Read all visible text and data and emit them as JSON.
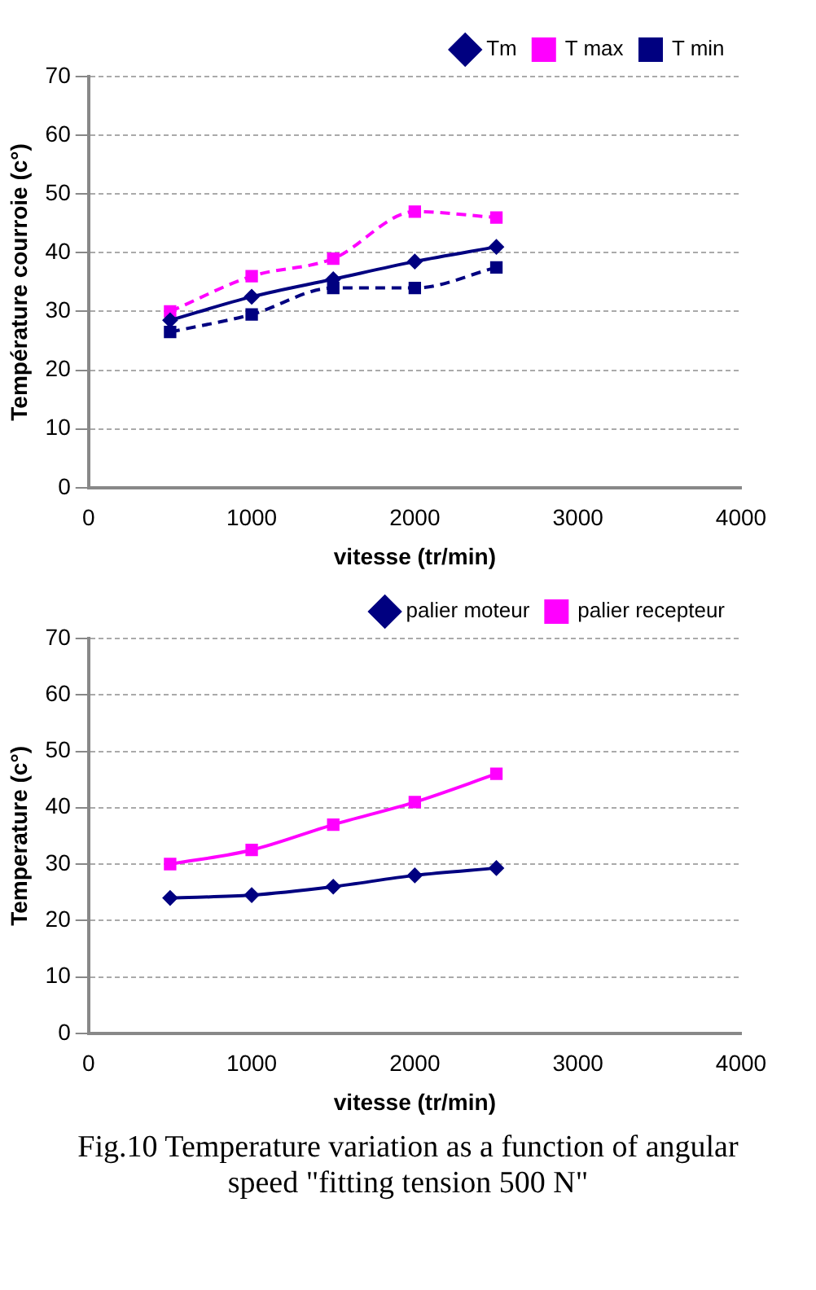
{
  "chart_data": [
    {
      "type": "line",
      "x": [
        500,
        1000,
        1500,
        2000,
        2500
      ],
      "xlabel": "vitesse (tr/min)",
      "ylabel": "Température courroie (c°)",
      "xlim": [
        0,
        4000
      ],
      "xticks": [
        0,
        1000,
        2000,
        3000,
        4000
      ],
      "ylim": [
        0,
        70
      ],
      "yticks": [
        0,
        10,
        20,
        30,
        40,
        50,
        60,
        70
      ],
      "grid": "y",
      "legend": "top right",
      "series": [
        {
          "name": "Tm",
          "color": "#000080",
          "marker": "diamond",
          "line_style": "solid",
          "values": [
            28.5,
            32.5,
            35.5,
            38.5,
            41
          ]
        },
        {
          "name": "T max",
          "color": "#ff00ff",
          "marker": "square",
          "line_style": "dashed",
          "values": [
            30,
            36,
            39,
            47,
            46
          ]
        },
        {
          "name": "T min",
          "color": "#000080",
          "marker": "square",
          "line_style": "dashed",
          "values": [
            26.5,
            29.5,
            34,
            34,
            37.5
          ]
        }
      ]
    },
    {
      "type": "line",
      "x": [
        500,
        1000,
        1500,
        2000,
        2500
      ],
      "xlabel": "vitesse (tr/min)",
      "ylabel": "Temperature (c°)",
      "xlim": [
        0,
        4000
      ],
      "xticks": [
        0,
        1000,
        2000,
        3000,
        4000
      ],
      "ylim": [
        0,
        70
      ],
      "yticks": [
        0,
        10,
        20,
        30,
        40,
        50,
        60,
        70
      ],
      "grid": "y",
      "legend": "top right",
      "annotations": [
        "Fig.10 Temperature variation as a function of angular speed \"fitting tension 500 N\""
      ],
      "series": [
        {
          "name": "palier moteur",
          "color": "#000080",
          "marker": "diamond",
          "line_style": "solid",
          "values": [
            24,
            24.5,
            26,
            28,
            29.3
          ]
        },
        {
          "name": "palier recepteur",
          "color": "#ff00ff",
          "marker": "square",
          "line_style": "solid",
          "values": [
            30,
            32.5,
            37,
            41,
            46
          ]
        }
      ]
    }
  ]
}
